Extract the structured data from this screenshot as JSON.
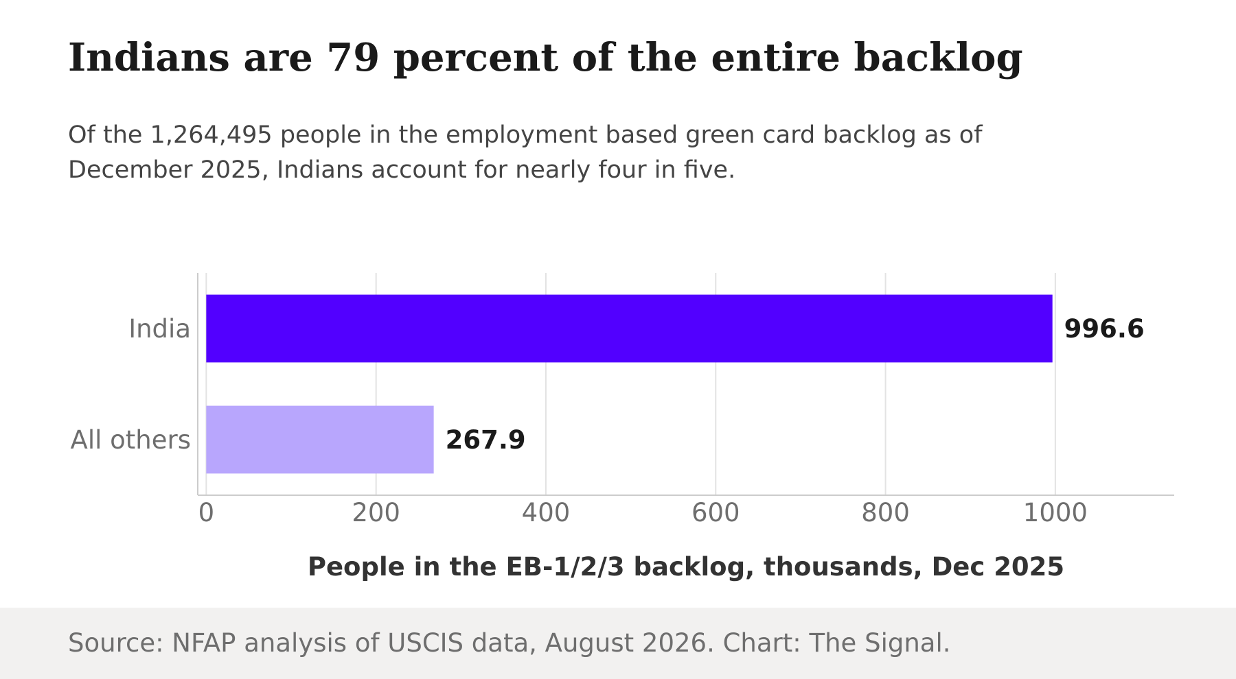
{
  "header": {
    "title": "Indians are 79 percent of the entire backlog",
    "subtitle": "Of the 1,264,495 people in the employment based green card backlog as of December 2025, Indians account for nearly four in five."
  },
  "footer": {
    "source": "Source: NFAP analysis of USCIS data, August 2026. Chart: The Signal."
  },
  "chart_data": {
    "type": "bar",
    "orientation": "horizontal",
    "categories": [
      "India",
      "All others"
    ],
    "values": [
      996.6,
      267.9
    ],
    "value_labels": [
      "996.6",
      "267.9"
    ],
    "colors": [
      "#5200ff",
      "#b8a6fd"
    ],
    "xlabel": "People in the EB-1/2/3 backlog, thousands, Dec 2025",
    "xlim": [
      -10,
      1140
    ],
    "xticks": [
      0,
      200,
      400,
      600,
      800,
      1000
    ],
    "xtick_labels": [
      "0",
      "200",
      "400",
      "600",
      "800",
      "1000"
    ],
    "grid": "vertical",
    "legend": "none"
  }
}
